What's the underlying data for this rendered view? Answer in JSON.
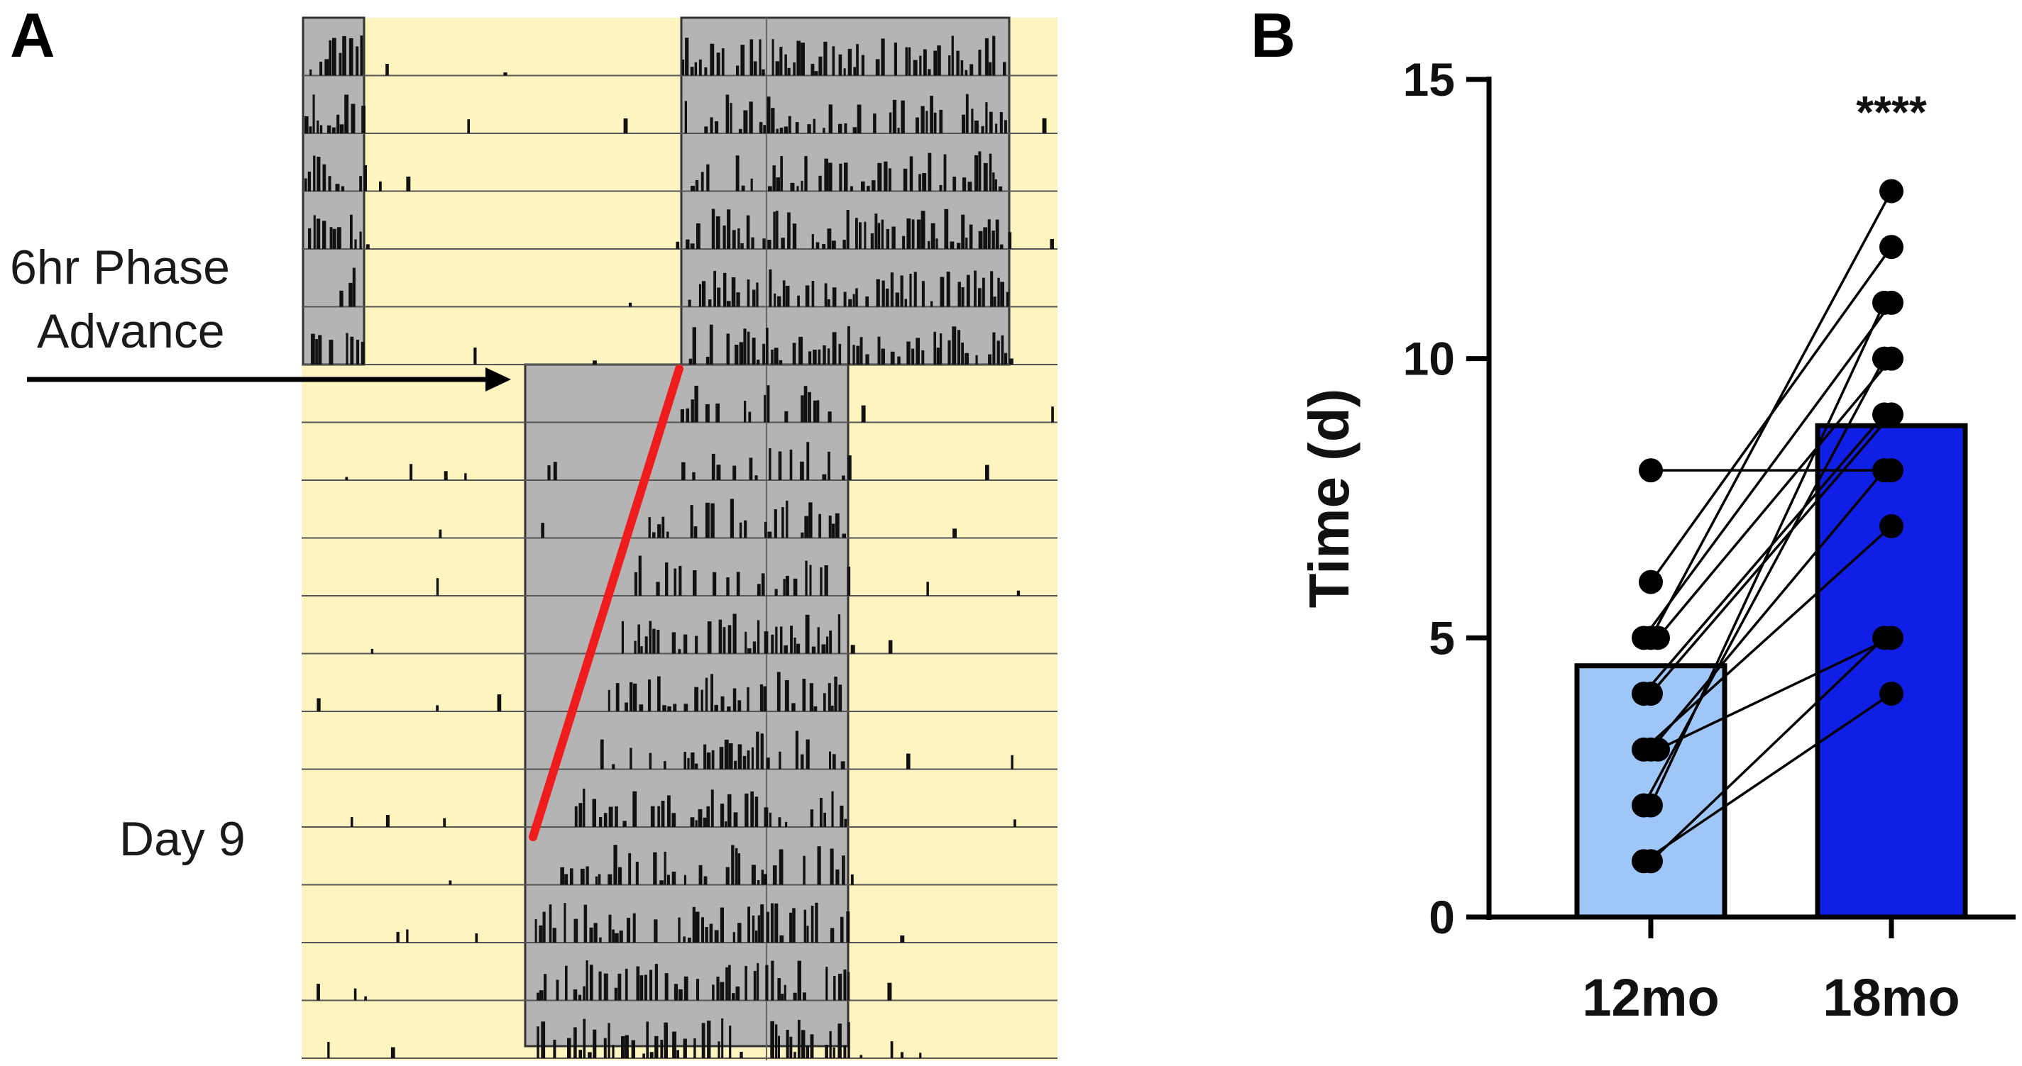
{
  "panel_a": {
    "letter": "A",
    "arrow_label_line1": "6hr Phase",
    "arrow_label_line2": "Advance",
    "day_label": "Day 9",
    "colors": {
      "light_phase": "#fdf4bf",
      "dark_phase": "#b4b4b4",
      "activity": "#111111",
      "shift_line": "#ee1c1c"
    },
    "days_before_shift": 6,
    "days_after_shift": 12,
    "reentrainment_marker_day": 9
  },
  "chart_data": {
    "type": "bar",
    "panel_letter": "B",
    "title": "",
    "xlabel": "",
    "ylabel": "Time (d)",
    "ylim": [
      0,
      15
    ],
    "yticks": [
      0,
      5,
      10,
      15
    ],
    "grid": false,
    "categories": [
      "12mo",
      "18mo"
    ],
    "values": [
      4.5,
      8.8
    ],
    "bar_colors": [
      "#9ec6f6",
      "#0f1fe6"
    ],
    "significance": "****",
    "paired_points": [
      [
        8,
        8
      ],
      [
        6,
        12
      ],
      [
        5,
        13
      ],
      [
        5,
        11
      ],
      [
        5,
        10
      ],
      [
        4,
        9
      ],
      [
        4,
        9
      ],
      [
        3,
        8
      ],
      [
        3,
        7
      ],
      [
        3,
        5
      ],
      [
        2,
        11
      ],
      [
        2,
        10
      ],
      [
        1,
        5
      ],
      [
        1,
        4
      ]
    ]
  }
}
